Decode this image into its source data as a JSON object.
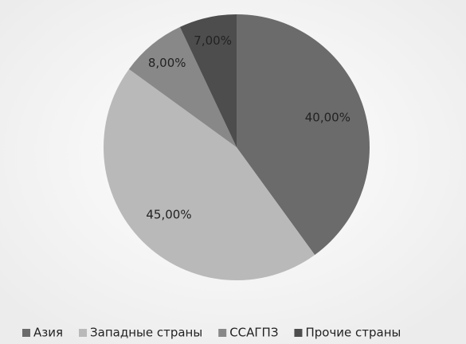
{
  "chart_data": {
    "type": "pie",
    "categories": [
      "Азия",
      "Западные страны",
      "ССАГПЗ",
      "Прочие страны"
    ],
    "values": [
      40,
      45,
      8,
      7
    ],
    "value_labels": [
      "40,00%",
      "45,00%",
      "8,00%",
      "7,00%"
    ],
    "colors": [
      "#6b6b6b",
      "#b9b9b9",
      "#888888",
      "#4d4d4d"
    ],
    "legend": "bottom"
  }
}
